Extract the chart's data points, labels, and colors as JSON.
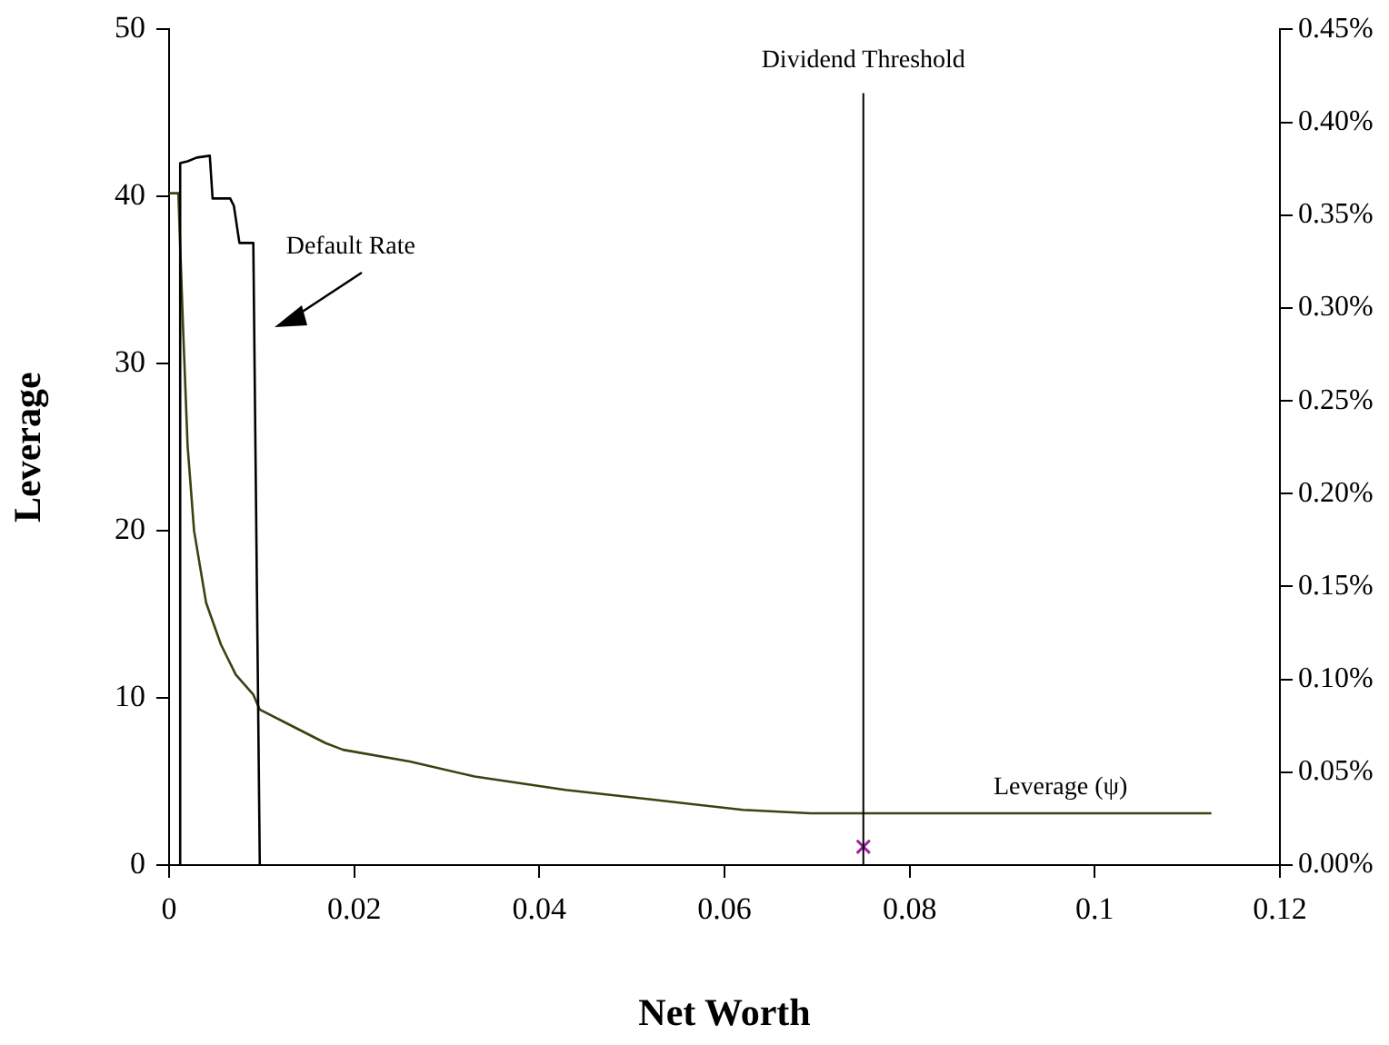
{
  "chart_data": {
    "type": "line",
    "xlabel": "Net Worth",
    "ylabel": "Leverage",
    "xlim": [
      0,
      0.12
    ],
    "xticks": [
      0,
      0.02,
      0.04,
      0.06,
      0.08,
      0.1,
      0.12
    ],
    "ylim": [
      0,
      50
    ],
    "yticks": [
      0,
      10,
      20,
      30,
      40,
      50
    ],
    "y2lim": [
      0,
      0.45
    ],
    "y2ticks": [
      {
        "value": 0,
        "label": "0.00%"
      },
      {
        "value": 0.05,
        "label": "0.05%"
      },
      {
        "value": 0.1,
        "label": "0.10%"
      },
      {
        "value": 0.15,
        "label": "0.15%"
      },
      {
        "value": 0.2,
        "label": "0.20%"
      },
      {
        "value": 0.25,
        "label": "0.25%"
      },
      {
        "value": 0.3,
        "label": "0.30%"
      },
      {
        "value": 0.35,
        "label": "0.35%"
      },
      {
        "value": 0.4,
        "label": "0.40%"
      },
      {
        "value": 0.45,
        "label": "0.45%"
      }
    ],
    "grid": false,
    "legend": false,
    "marker": "none",
    "series": [
      {
        "name": "Default Rate",
        "color": "#000000",
        "axis": "y2",
        "x": [
          0.0012,
          0.0012,
          0.002,
          0.003,
          0.0044,
          0.0047,
          0.0066,
          0.007,
          0.0076,
          0.0091,
          0.0098
        ],
        "values": [
          0,
          0.378,
          0.379,
          0.381,
          0.382,
          0.359,
          0.359,
          0.355,
          0.335,
          0.335,
          0
        ]
      },
      {
        "name": "Leverage (ψ)",
        "color": "#3f3f10",
        "x": [
          0,
          0.001,
          0.0015,
          0.002,
          0.0027,
          0.004,
          0.0056,
          0.0072,
          0.0091,
          0.0098,
          0.013,
          0.0169,
          0.0188,
          0.026,
          0.033,
          0.0428,
          0.0525,
          0.062,
          0.0693,
          0.1126
        ],
        "values": [
          40.2,
          40.2,
          32.3,
          25.1,
          20,
          15.7,
          13.2,
          11.4,
          10.2,
          9.3,
          8.4,
          7.3,
          6.9,
          6.2,
          5.3,
          4.5,
          3.9,
          3.3,
          3.1,
          3.1
        ]
      },
      {
        "type": "scatter",
        "marker": "cross",
        "color": "#a0209f",
        "x": [
          0.075
        ],
        "values": [
          1.1
        ]
      }
    ],
    "ref_lines": [
      {
        "axis": "x",
        "value": 0.075,
        "label": "Dividend Threshold",
        "color": "#000000"
      }
    ]
  }
}
